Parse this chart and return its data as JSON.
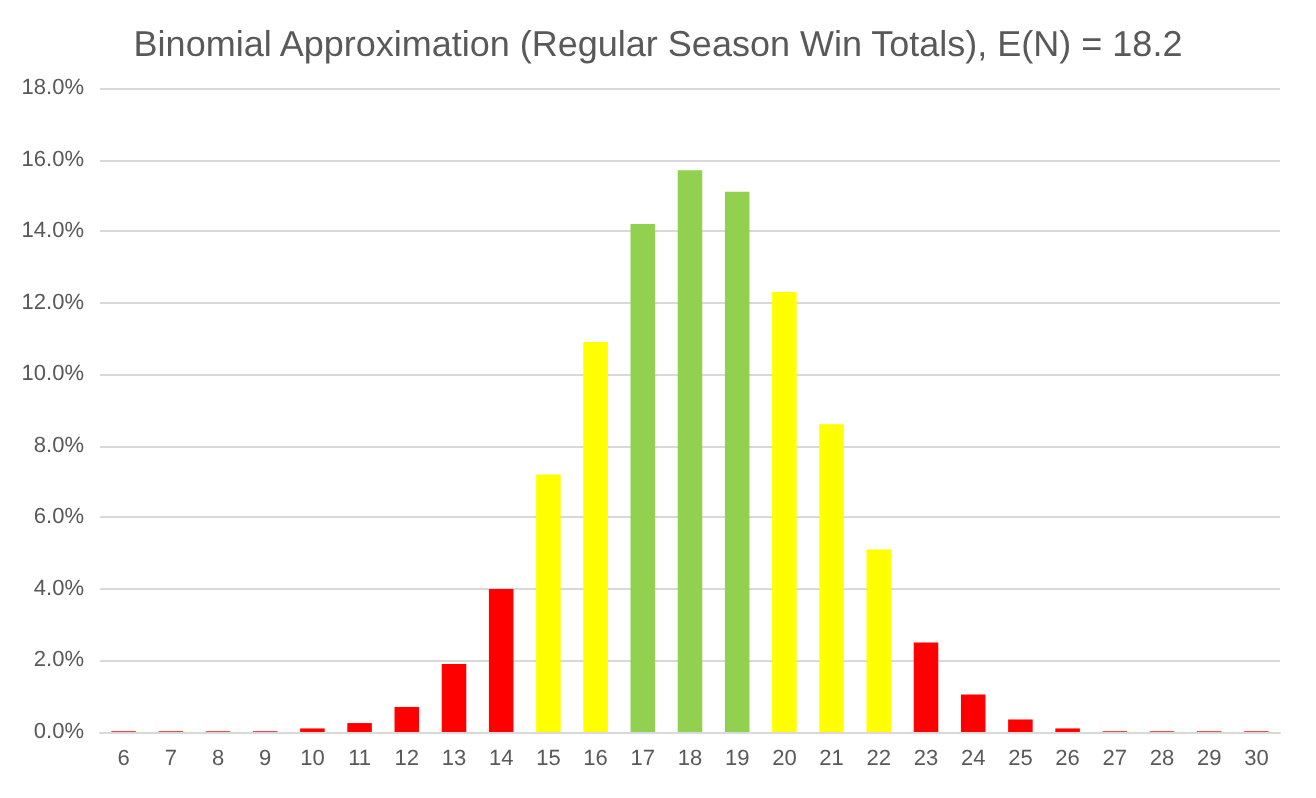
{
  "chart_data": {
    "type": "bar",
    "title": "Binomial Approximation (Regular Season Win Totals), E(N) = 18.2",
    "categories": [
      "6",
      "7",
      "8",
      "9",
      "10",
      "11",
      "12",
      "13",
      "14",
      "15",
      "16",
      "17",
      "18",
      "19",
      "20",
      "21",
      "22",
      "23",
      "24",
      "25",
      "26",
      "27",
      "28",
      "29",
      "30"
    ],
    "values": [
      0.02,
      0.02,
      0.02,
      0.02,
      0.1,
      0.25,
      0.7,
      1.9,
      4.0,
      7.2,
      10.9,
      14.2,
      15.7,
      15.1,
      12.3,
      8.6,
      5.1,
      2.5,
      1.05,
      0.35,
      0.1,
      0.02,
      0.02,
      0.02,
      0.02
    ],
    "colors": [
      "#ff0000",
      "#ff0000",
      "#ff0000",
      "#ff0000",
      "#ff0000",
      "#ff0000",
      "#ff0000",
      "#ff0000",
      "#ff0000",
      "#ffff00",
      "#ffff00",
      "#92d050",
      "#92d050",
      "#92d050",
      "#ffff00",
      "#ffff00",
      "#ffff00",
      "#ff0000",
      "#ff0000",
      "#ff0000",
      "#ff0000",
      "#ff0000",
      "#ff0000",
      "#ff0000",
      "#ff0000"
    ],
    "ylim": [
      0,
      18
    ],
    "yticks": [
      {
        "value": 0,
        "label": "0.0%"
      },
      {
        "value": 2,
        "label": "2.0%"
      },
      {
        "value": 4,
        "label": "4.0%"
      },
      {
        "value": 6,
        "label": "6.0%"
      },
      {
        "value": 8,
        "label": "8.0%"
      },
      {
        "value": 10,
        "label": "10.0%"
      },
      {
        "value": 12,
        "label": "12.0%"
      },
      {
        "value": 14,
        "label": "14.0%"
      },
      {
        "value": 16,
        "label": "16.0%"
      },
      {
        "value": 18,
        "label": "18.0%"
      }
    ],
    "grid": "y"
  }
}
